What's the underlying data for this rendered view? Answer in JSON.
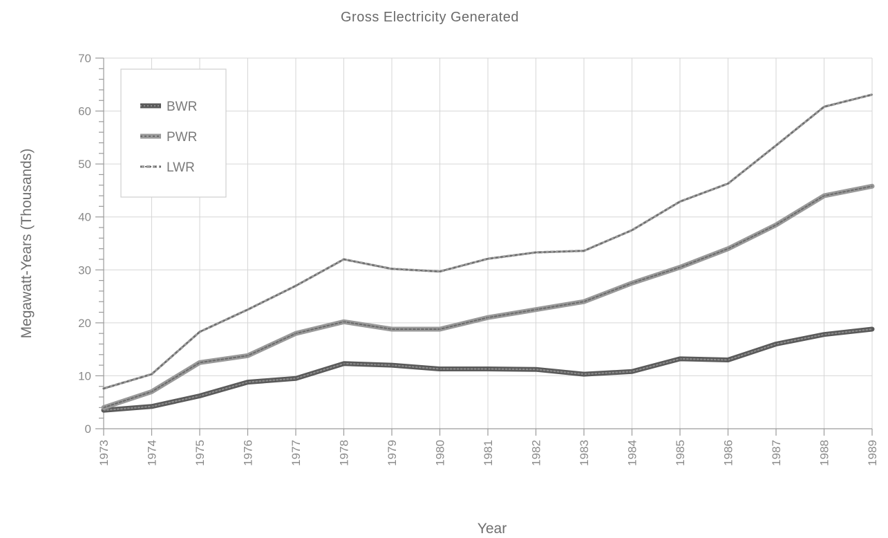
{
  "chart_data": {
    "type": "line",
    "title": "Gross Electricity Generated",
    "xlabel": "Year",
    "ylabel": "Megawatt-Years (Thousands)",
    "x": [
      1973,
      1974,
      1975,
      1976,
      1977,
      1978,
      1979,
      1980,
      1981,
      1982,
      1983,
      1984,
      1985,
      1986,
      1987,
      1988,
      1989
    ],
    "yticks": [
      0,
      10,
      20,
      30,
      40,
      50,
      60,
      70
    ],
    "ylim": [
      0,
      70
    ],
    "grid": true,
    "legend_position": "top-left",
    "series": [
      {
        "name": "BWR",
        "color": "#555555",
        "values": [
          3.5,
          4.2,
          6.2,
          8.8,
          9.5,
          12.3,
          12.0,
          11.3,
          11.3,
          11.2,
          10.3,
          10.8,
          13.2,
          13.0,
          16.0,
          17.8,
          18.8
        ]
      },
      {
        "name": "PWR",
        "color": "#8a8a8a",
        "values": [
          4.0,
          7.0,
          12.5,
          13.8,
          18.0,
          20.2,
          18.8,
          18.8,
          21.0,
          22.5,
          24.0,
          27.5,
          30.5,
          34.0,
          38.5,
          44.0,
          45.8
        ]
      },
      {
        "name": "LWR",
        "color": "#6e6e6e",
        "values": [
          7.6,
          10.3,
          18.3,
          22.5,
          27.0,
          32.0,
          30.2,
          29.7,
          32.1,
          33.3,
          33.6,
          37.5,
          42.9,
          46.3,
          53.5,
          60.8,
          63.1
        ]
      }
    ]
  }
}
